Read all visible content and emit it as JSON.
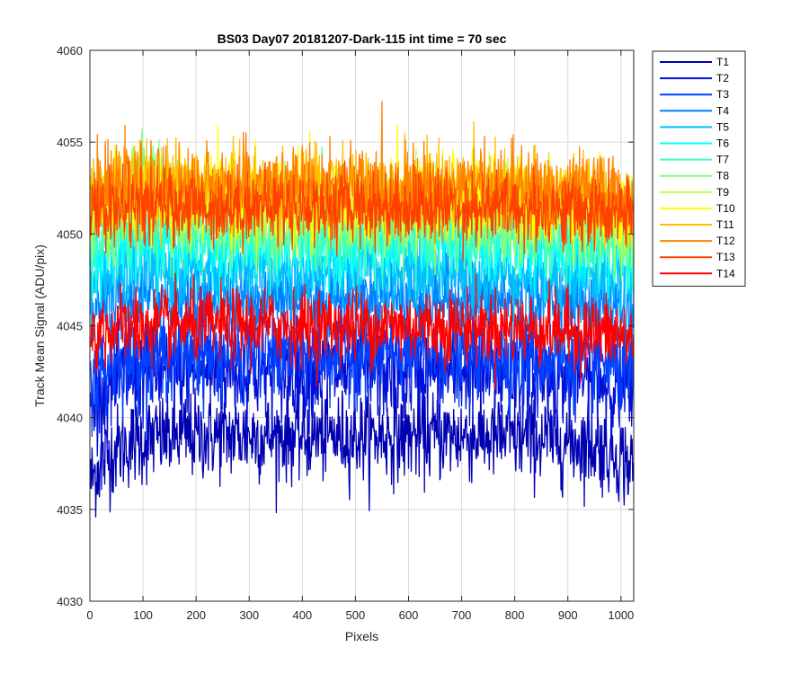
{
  "chart_data": {
    "type": "line",
    "title": "BS03 Day07 20181207-Dark-115 int time = 70 sec",
    "xlabel": "Pixels",
    "ylabel": "Track Mean Signal (ADU/pix)",
    "xlim": [
      0,
      1024
    ],
    "ylim": [
      4030,
      4060
    ],
    "x_ticks": [
      0,
      100,
      200,
      300,
      400,
      500,
      600,
      700,
      800,
      900,
      1000
    ],
    "y_ticks": [
      4030,
      4035,
      4040,
      4045,
      4050,
      4055,
      4060
    ],
    "grid": true,
    "legend_position": "outside-top-right",
    "series": [
      {
        "name": "T1",
        "color": "#0000b3",
        "base": 4039.0,
        "noise": 1.2,
        "edge": 2.5,
        "bump": 0
      },
      {
        "name": "T2",
        "color": "#0010d9",
        "base": 4042.5,
        "noise": 1.3,
        "edge": 2.0,
        "bump": 0
      },
      {
        "name": "T3",
        "color": "#0040ff",
        "base": 4043.5,
        "noise": 1.2,
        "edge": 1.5,
        "bump": 0
      },
      {
        "name": "T4",
        "color": "#0080ff",
        "base": 4046.5,
        "noise": 1.1,
        "edge": 1.0,
        "bump": 0
      },
      {
        "name": "T5",
        "color": "#00bfff",
        "base": 4048.0,
        "noise": 1.1,
        "edge": 0.5,
        "bump": 0
      },
      {
        "name": "T6",
        "color": "#00ffff",
        "base": 4049.5,
        "noise": 1.1,
        "edge": 0.5,
        "bump": 0
      },
      {
        "name": "T7",
        "color": "#40ffbf",
        "base": 4050.0,
        "noise": 1.1,
        "edge": 0.5,
        "bump": 0.5
      },
      {
        "name": "T8",
        "color": "#80ff80",
        "base": 4051.0,
        "noise": 1.2,
        "edge": 0.5,
        "bump": 3.0
      },
      {
        "name": "T9",
        "color": "#bfff40",
        "base": 4051.5,
        "noise": 1.1,
        "edge": 0.5,
        "bump": 0.5
      },
      {
        "name": "T10",
        "color": "#ffff00",
        "base": 4052.0,
        "noise": 1.1,
        "edge": 0.5,
        "bump": 0
      },
      {
        "name": "T11",
        "color": "#ffbf00",
        "base": 4052.5,
        "noise": 1.1,
        "edge": 0.5,
        "bump": 0
      },
      {
        "name": "T12",
        "color": "#ff8000",
        "base": 4052.5,
        "noise": 1.1,
        "edge": 0.5,
        "bump": 0
      },
      {
        "name": "T13",
        "color": "#ff4000",
        "base": 4051.5,
        "noise": 1.0,
        "edge": 0.5,
        "bump": 0
      },
      {
        "name": "T14",
        "color": "#ff0000",
        "base": 4045.0,
        "noise": 1.0,
        "edge": 0.5,
        "bump": 0
      }
    ]
  }
}
